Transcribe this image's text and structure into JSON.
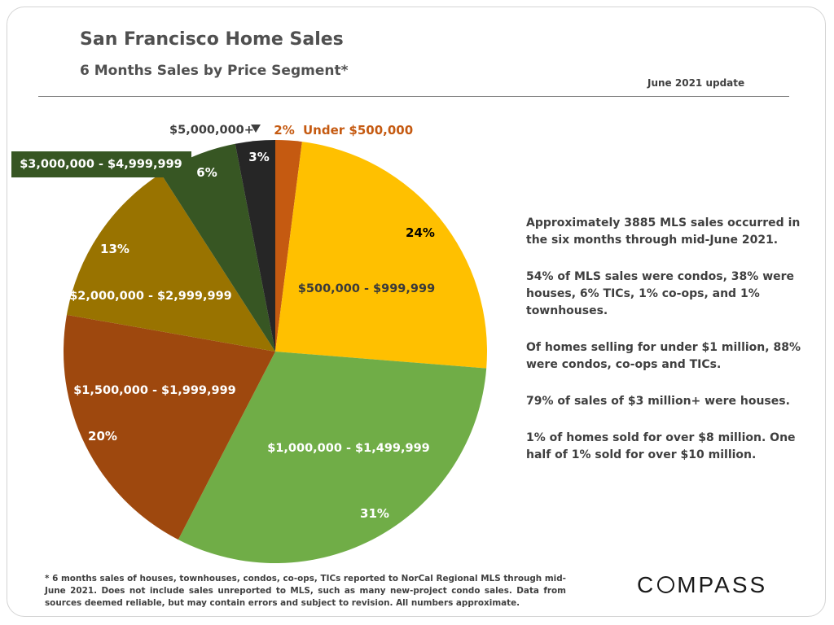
{
  "header": {
    "title": "San Francisco Home Sales",
    "subtitle": "6 Months Sales by Price Segment*",
    "update": "June 2021 update"
  },
  "notes": [
    "Approximately 3885 MLS sales occurred in the six months through mid-June 2021.",
    "54% of MLS sales were condos, 38% were houses, 6% TICs, 1% co-ops, and 1% townhouses.",
    "Of homes selling for under $1 million, 88% were condos, co-ops and TICs.",
    "79% of sales of $3 million+ were houses.",
    "1% of homes sold for over $8 million. One half of 1% sold for over $10 million."
  ],
  "footnote": "* 6 months sales of houses, townhouses, condos, co-ops, TICs reported to NorCal Regional MLS through mid-June 2021. Does not include sales unreported to MLS, such as many new-project condo sales. Data from sources deemed reliable, but may contain errors and subject to revision. All numbers approximate.",
  "logo": {
    "text_before": "C",
    "text_after": "MPASS"
  },
  "chart_data": {
    "type": "pie",
    "title": "6 Months Sales by Price Segment*",
    "categories": [
      "Under $500,000",
      "$500,000 - $999,999",
      "$1,000,000 - $1,499,999",
      "$1,500,000 - $1,999,999",
      "$2,000,000 - $2,999,999",
      "$3,000,000 - $4,999,999",
      "$5,000,000+"
    ],
    "values": [
      2,
      24,
      31,
      20,
      13,
      6,
      3
    ],
    "value_labels": [
      "2%",
      "24%",
      "31%",
      "20%",
      "13%",
      "6%",
      "3%"
    ],
    "colors": [
      "#c55a11",
      "#ffc000",
      "#70ad47",
      "#9e480e",
      "#997300",
      "#375623",
      "#262626"
    ],
    "start": "12 o'clock, clockwise",
    "legend": "none (direct labels)"
  }
}
